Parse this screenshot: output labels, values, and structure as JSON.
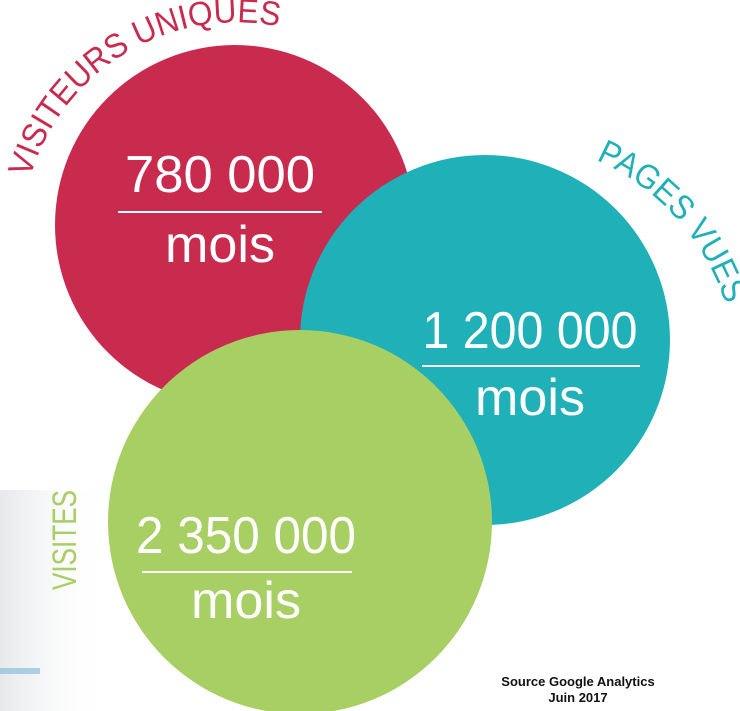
{
  "circles": [
    {
      "label": "VISITEURS UNIQUES",
      "value": "780 000",
      "unit": "mois"
    },
    {
      "label": "PAGES VUES",
      "value": "1 200 000",
      "unit": "mois"
    },
    {
      "label": "VISITES",
      "value": "2 350 000",
      "unit": "mois"
    }
  ],
  "source": {
    "line1": "Source Google Analytics",
    "line2": "Juin 2017"
  }
}
